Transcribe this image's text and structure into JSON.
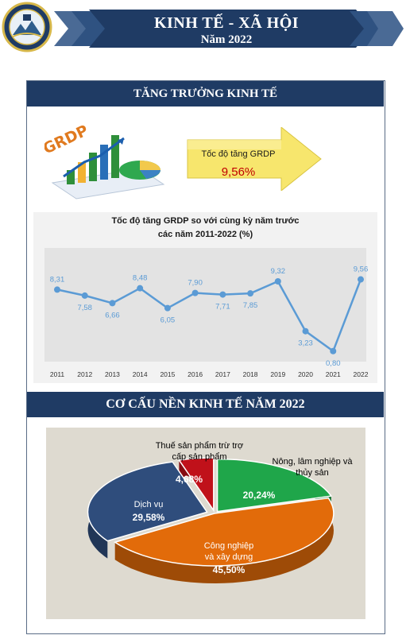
{
  "header": {
    "title": "KINH TẾ - XÃ HỘI",
    "subtitle": "Năm 2022",
    "colors": {
      "navy": "#1f3b64",
      "slate": "#4a6a95"
    }
  },
  "section1": {
    "title": "TĂNG TRƯỞNG KINH TẾ",
    "grdp_art_text": "GRDP",
    "arrow_label": "Tốc độ tăng GRDP",
    "arrow_value": "9,56%"
  },
  "section2": {
    "title": "CƠ CẤU NỀN KINH TẾ  NĂM 2022"
  },
  "chart_data": [
    {
      "type": "line",
      "title_line1": "Tốc độ tăng GRDP so với cùng kỳ năm trước",
      "title_line2": "các năm 2011-2022 (%)",
      "categories": [
        "2011",
        "2012",
        "2013",
        "2014",
        "2015",
        "2016",
        "2017",
        "2018",
        "2019",
        "2020",
        "2021",
        "2022"
      ],
      "values": [
        8.31,
        7.58,
        6.66,
        8.48,
        6.05,
        7.9,
        7.71,
        7.85,
        9.32,
        3.23,
        0.8,
        9.56
      ],
      "value_labels": [
        "8,31",
        "7,58",
        "6,66",
        "8,48",
        "6,05",
        "7,90",
        "7,71",
        "7,85",
        "9,32",
        "3,23",
        "0,80",
        "9,56"
      ],
      "ylim": [
        0,
        10
      ],
      "grid": false,
      "color": "#5b9bd5"
    },
    {
      "type": "pie",
      "slices": [
        {
          "name": "Nông, lâm nghiệp và thủy sản",
          "name_line1": "Nông, lâm nghiệp và",
          "name_line2": "thủy sản",
          "value": 20.24,
          "label": "20,24%",
          "color": "#1fa64a"
        },
        {
          "name": "Công nghiệp và xây dựng",
          "name_line1": "Công nghiệp",
          "name_line2": "và xây dựng",
          "value": 45.5,
          "label": "45,50%",
          "color": "#e26b0a"
        },
        {
          "name": "Dịch vụ",
          "name_line1": "Dịch vụ",
          "name_line2": "",
          "value": 29.58,
          "label": "29,58%",
          "color": "#2f4d7c"
        },
        {
          "name": "Thuế sản phẩm trừ trợ cấp sản phẩm",
          "name_line1": "Thuế sản phẩm trừ trợ",
          "name_line2": "cấp sản phẩm",
          "value": 4.68,
          "label": "4,68%",
          "color": "#c0111a"
        }
      ]
    }
  ]
}
